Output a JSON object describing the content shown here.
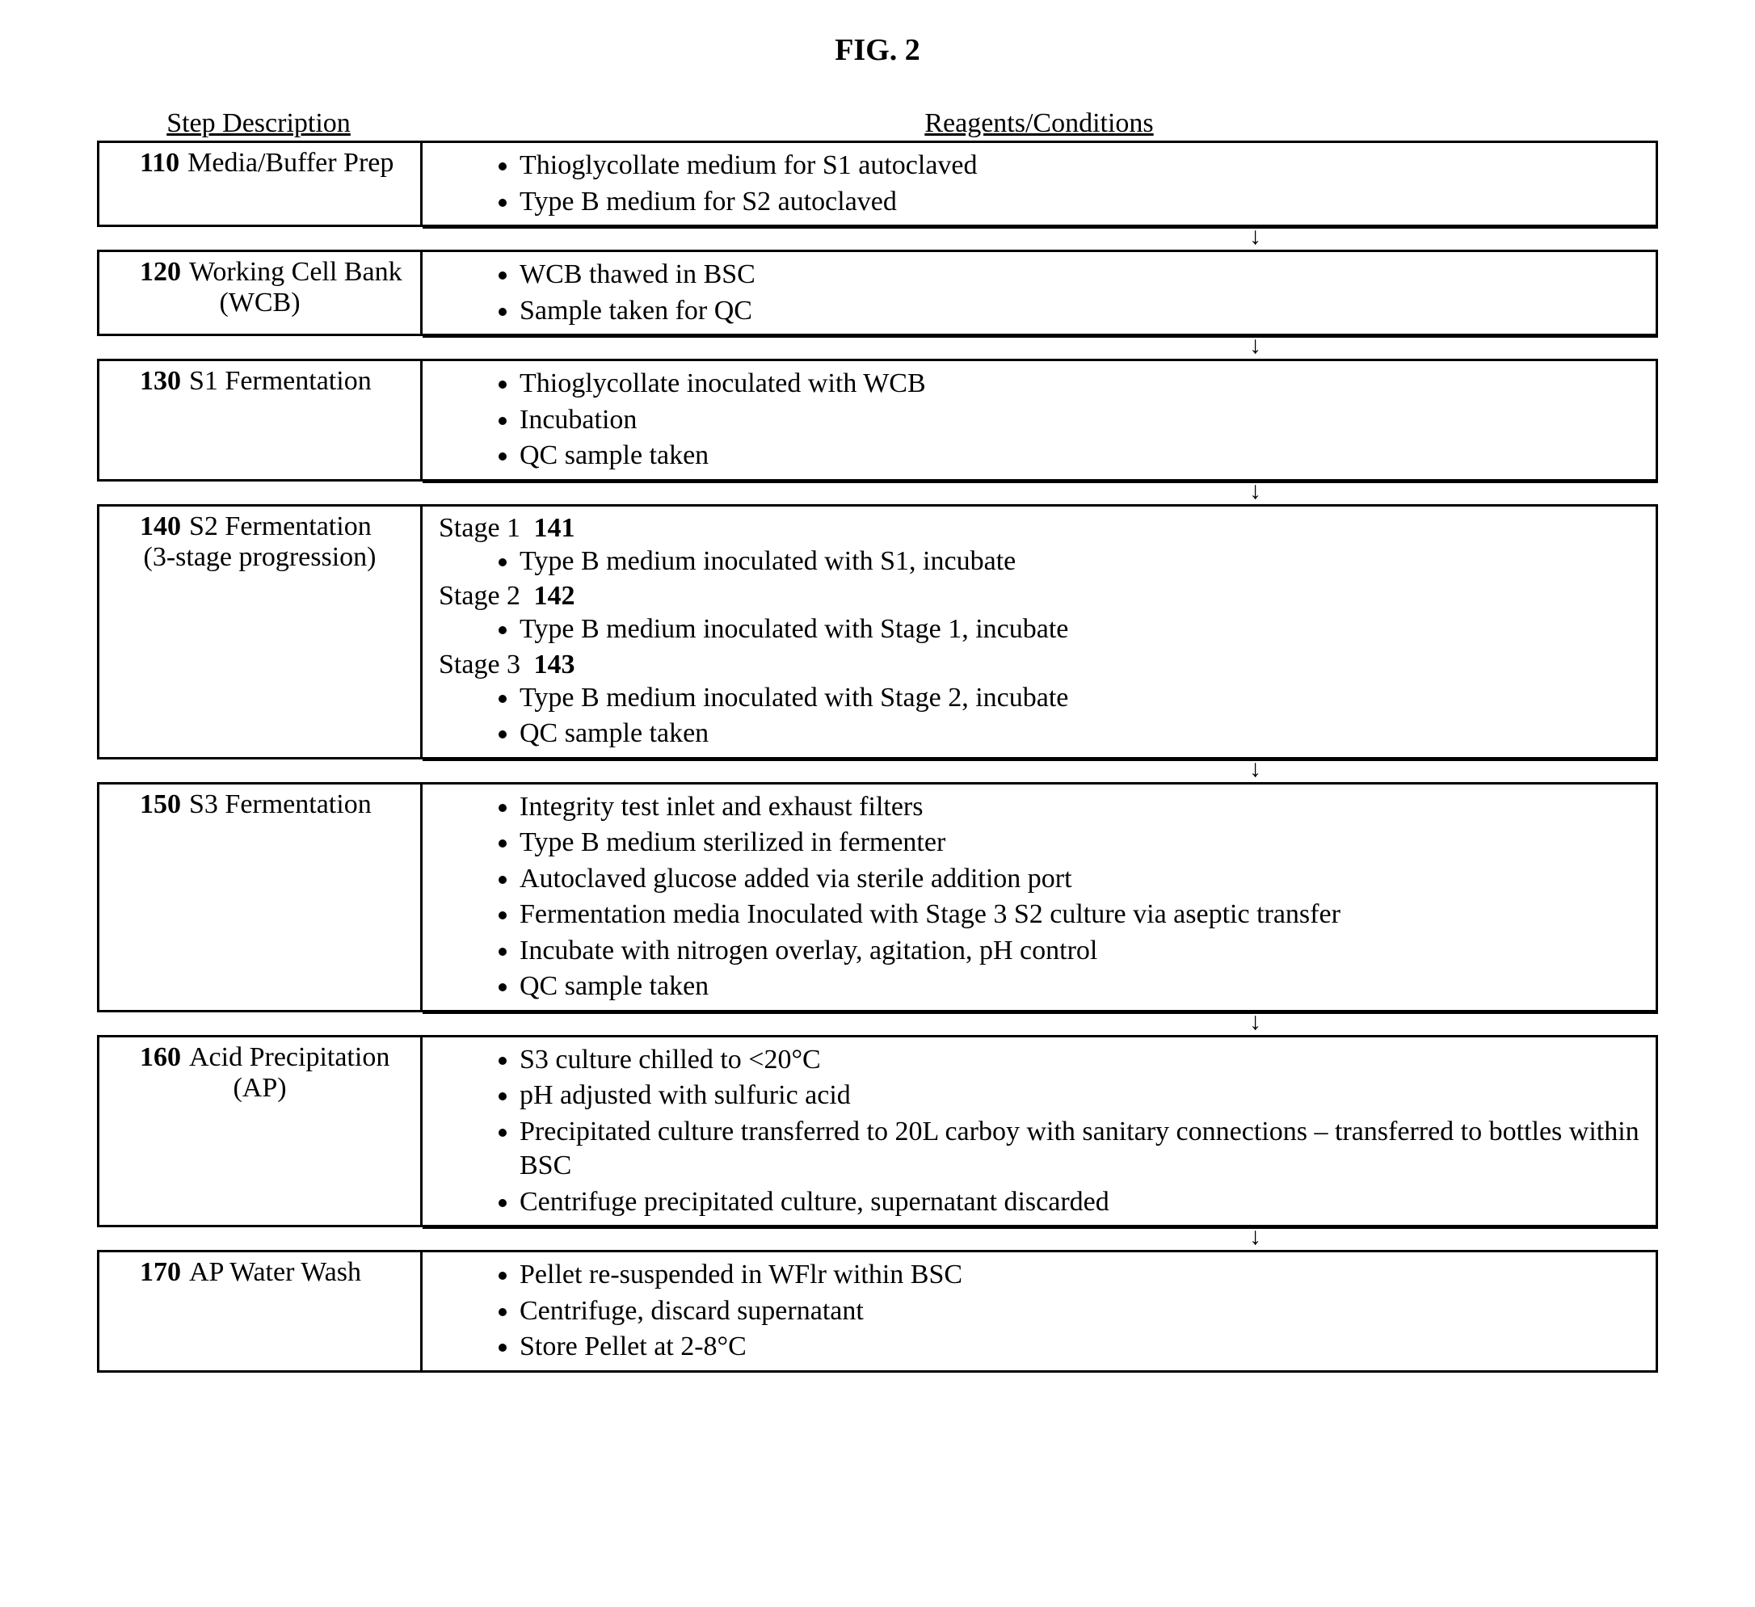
{
  "figureTitle": "FIG. 2",
  "columns": {
    "step": "Step Description",
    "reagents": "Reagents/Conditions"
  },
  "steps": [
    {
      "num": "110",
      "label": "Media/Buffer Prep",
      "bullets": [
        "Thioglycollate medium for S1 autoclaved",
        "Type B medium for S2 autoclaved"
      ]
    },
    {
      "num": "120",
      "label": "Working Cell Bank",
      "sublabel": "(WCB)",
      "bullets": [
        "WCB thawed in BSC",
        "Sample taken for QC"
      ]
    },
    {
      "num": "130",
      "label": "S1 Fermentation",
      "bullets": [
        "Thioglycollate inoculated with WCB",
        "Incubation",
        "QC sample taken"
      ]
    },
    {
      "num": "140",
      "label": "S2 Fermentation",
      "sublabel": "(3-stage progression)",
      "stages": [
        {
          "label": "Stage 1",
          "code": "141",
          "bullets": [
            "Type B medium inoculated with S1, incubate"
          ]
        },
        {
          "label": "Stage 2",
          "code": "142",
          "bullets": [
            "Type B medium inoculated with Stage 1, incubate"
          ]
        },
        {
          "label": "Stage 3",
          "code": "143",
          "bullets": [
            "Type B medium inoculated with Stage 2, incubate",
            "QC sample taken"
          ]
        }
      ]
    },
    {
      "num": "150",
      "label": "S3 Fermentation",
      "bullets": [
        "Integrity test inlet and exhaust filters",
        "Type B medium sterilized in fermenter",
        "Autoclaved glucose added via sterile addition port",
        "Fermentation media Inoculated with Stage 3 S2 culture via aseptic transfer",
        "Incubate with nitrogen overlay, agitation, pH control",
        "QC sample taken"
      ]
    },
    {
      "num": "160",
      "label": "Acid Precipitation",
      "sublabel": "(AP)",
      "bullets": [
        "S3 culture chilled to <20°C",
        "pH adjusted with sulfuric acid",
        "Precipitated culture transferred to 20L carboy with sanitary connections – transferred to bottles within BSC",
        "Centrifuge precipitated culture, supernatant discarded"
      ]
    },
    {
      "num": "170",
      "label": "AP Water Wash",
      "bullets": [
        "Pellet re-suspended in WFlr within BSC",
        "Centrifuge, discard supernatant",
        "Store Pellet at 2-8°C"
      ]
    }
  ],
  "style": {
    "fontFamily": "Times New Roman",
    "border": "#000000",
    "background": "#ffffff",
    "titleSize": 38,
    "bodySize": 34,
    "leftColWidth": 400
  }
}
